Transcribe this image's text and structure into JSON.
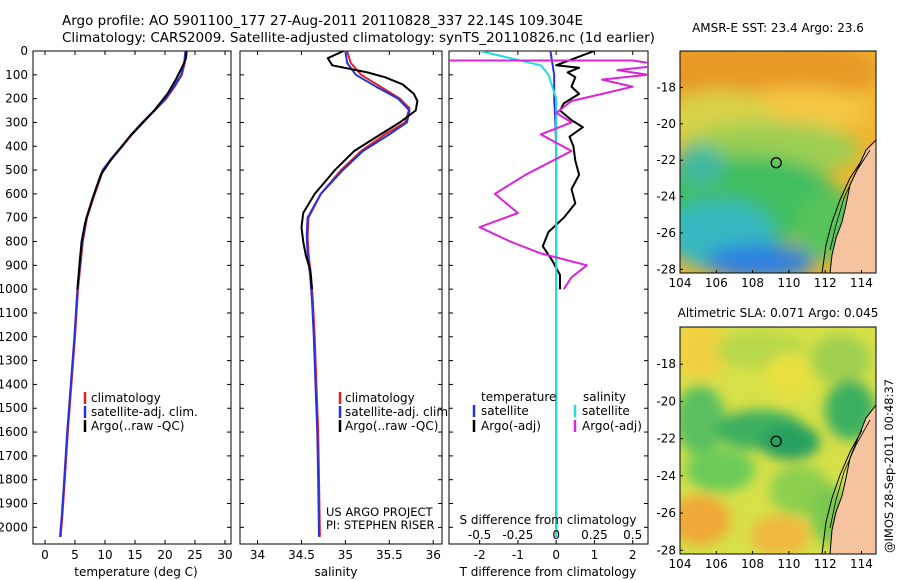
{
  "header": {
    "line1": "Argo profile: AO 5901100_177 27-Aug-2011 20110828_337 22.14S 109.304E",
    "line2": "Climatology: CARS2009. Satellite-adjusted climatology: synTS_20110826.nc (1d earlier)"
  },
  "colors": {
    "climatology": "#e02020",
    "satellite": "#2233dd",
    "argo": "#000000",
    "satellite_salinity": "#22dddd",
    "argo_salinity": "#dd22dd"
  },
  "chart_data": [
    {
      "type": "line",
      "id": "temperature",
      "xlabel": "temperature (deg C)",
      "xlim": [
        -2,
        31
      ],
      "xticks": [
        0,
        5,
        10,
        15,
        20,
        25,
        30
      ],
      "ylim": [
        2070,
        0
      ],
      "yticks": [
        0,
        100,
        200,
        300,
        400,
        500,
        600,
        700,
        800,
        900,
        1000,
        1100,
        1200,
        1300,
        1400,
        1500,
        1600,
        1700,
        1800,
        1900,
        2000
      ],
      "legend": [
        "climatology",
        "satellite-adj. clim.",
        "Argo(..raw -QC)"
      ],
      "series": [
        {
          "name": "climatology",
          "color_key": "climatology",
          "points": [
            [
              23.6,
              0
            ],
            [
              23.3,
              50
            ],
            [
              22.8,
              100
            ],
            [
              21.6,
              150
            ],
            [
              20.2,
              200
            ],
            [
              18.3,
              250
            ],
            [
              16.3,
              300
            ],
            [
              14.5,
              350
            ],
            [
              12.9,
              400
            ],
            [
              11.2,
              450
            ],
            [
              9.7,
              500
            ],
            [
              8.3,
              600
            ],
            [
              7.0,
              700
            ],
            [
              6.3,
              800
            ],
            [
              5.9,
              900
            ],
            [
              5.5,
              1000
            ],
            [
              5.0,
              1200
            ],
            [
              4.4,
              1400
            ],
            [
              3.8,
              1600
            ],
            [
              3.3,
              1800
            ],
            [
              2.9,
              1950
            ],
            [
              2.6,
              2040
            ]
          ]
        },
        {
          "name": "satellite-adj. clim.",
          "color_key": "satellite",
          "points": [
            [
              23.4,
              0
            ],
            [
              23.2,
              50
            ],
            [
              22.7,
              100
            ],
            [
              21.5,
              150
            ],
            [
              20.1,
              200
            ],
            [
              18.2,
              250
            ],
            [
              16.2,
              300
            ],
            [
              14.4,
              350
            ],
            [
              12.8,
              400
            ],
            [
              11.1,
              450
            ],
            [
              9.6,
              500
            ],
            [
              8.2,
              600
            ],
            [
              6.9,
              700
            ],
            [
              6.2,
              800
            ],
            [
              5.8,
              900
            ],
            [
              5.4,
              1000
            ],
            [
              4.9,
              1200
            ],
            [
              4.3,
              1400
            ],
            [
              3.7,
              1600
            ],
            [
              3.2,
              1800
            ],
            [
              2.8,
              1950
            ],
            [
              2.5,
              2040
            ]
          ]
        },
        {
          "name": "Argo(..raw -QC)",
          "color_key": "argo",
          "points": [
            [
              23.6,
              0
            ],
            [
              23.5,
              30
            ],
            [
              23.0,
              60
            ],
            [
              21.8,
              120
            ],
            [
              20.4,
              180
            ],
            [
              18.2,
              250
            ],
            [
              16.0,
              310
            ],
            [
              14.1,
              360
            ],
            [
              12.5,
              410
            ],
            [
              10.9,
              460
            ],
            [
              9.3,
              520
            ],
            [
              7.9,
              620
            ],
            [
              6.7,
              720
            ],
            [
              6.1,
              800
            ],
            [
              5.8,
              880
            ],
            [
              5.6,
              940
            ],
            [
              5.4,
              1000
            ]
          ]
        }
      ]
    },
    {
      "type": "line",
      "id": "salinity",
      "xlabel": "salinity",
      "xlim": [
        33.8,
        36.1
      ],
      "xticks": [
        34,
        34.5,
        35,
        35.5,
        36
      ],
      "xticklabels": [
        "34",
        "34.5",
        "35",
        "35.5",
        "36"
      ],
      "ylim": [
        2070,
        0
      ],
      "legend": [
        "climatology",
        "satellite-adj. clim.",
        "Argo(..raw -QC)"
      ],
      "notes": [
        "US ARGO PROJECT",
        "PI: STEPHEN RISER"
      ],
      "series": [
        {
          "name": "climatology",
          "color_key": "climatology",
          "points": [
            [
              35.02,
              0
            ],
            [
              35.06,
              50
            ],
            [
              35.18,
              100
            ],
            [
              35.4,
              150
            ],
            [
              35.62,
              200
            ],
            [
              35.73,
              240
            ],
            [
              35.68,
              300
            ],
            [
              35.45,
              350
            ],
            [
              35.18,
              420
            ],
            [
              34.95,
              500
            ],
            [
              34.72,
              600
            ],
            [
              34.58,
              700
            ],
            [
              34.57,
              780
            ],
            [
              34.58,
              850
            ],
            [
              34.61,
              950
            ],
            [
              34.63,
              1050
            ],
            [
              34.65,
              1200
            ],
            [
              34.67,
              1400
            ],
            [
              34.69,
              1600
            ],
            [
              34.7,
              1800
            ],
            [
              34.71,
              2040
            ]
          ]
        },
        {
          "name": "satellite-adj. clim.",
          "color_key": "satellite",
          "points": [
            [
              35.0,
              0
            ],
            [
              35.02,
              50
            ],
            [
              35.12,
              100
            ],
            [
              35.35,
              150
            ],
            [
              35.6,
              200
            ],
            [
              35.73,
              250
            ],
            [
              35.7,
              300
            ],
            [
              35.5,
              350
            ],
            [
              35.2,
              420
            ],
            [
              34.97,
              500
            ],
            [
              34.72,
              600
            ],
            [
              34.57,
              700
            ],
            [
              34.56,
              780
            ],
            [
              34.57,
              850
            ],
            [
              34.6,
              950
            ],
            [
              34.62,
              1050
            ],
            [
              34.64,
              1200
            ],
            [
              34.66,
              1400
            ],
            [
              34.68,
              1600
            ],
            [
              34.69,
              1800
            ],
            [
              34.7,
              2040
            ]
          ]
        },
        {
          "name": "Argo(..raw -QC)",
          "color_key": "argo",
          "points": [
            [
              34.98,
              0
            ],
            [
              34.8,
              30
            ],
            [
              34.85,
              60
            ],
            [
              35.25,
              90
            ],
            [
              35.45,
              110
            ],
            [
              35.65,
              140
            ],
            [
              35.78,
              180
            ],
            [
              35.82,
              210
            ],
            [
              35.8,
              250
            ],
            [
              35.62,
              300
            ],
            [
              35.4,
              350
            ],
            [
              35.1,
              420
            ],
            [
              34.88,
              500
            ],
            [
              34.65,
              600
            ],
            [
              34.52,
              680
            ],
            [
              34.5,
              740
            ],
            [
              34.52,
              800
            ],
            [
              34.55,
              860
            ],
            [
              34.6,
              920
            ],
            [
              34.62,
              1000
            ]
          ]
        }
      ]
    },
    {
      "type": "line",
      "id": "difference",
      "xlabel": "T difference from climatology",
      "xlabel_top": "S difference from climatology",
      "xlim": [
        -2.8,
        2.4
      ],
      "xticks": [
        -2,
        -1,
        0,
        1,
        2
      ],
      "xticks_top": [
        -0.5,
        -0.25,
        0,
        0.25,
        0.5
      ],
      "xticklabels_top": [
        "-0.5",
        "-0.25",
        "0",
        "0.25",
        "0.5"
      ],
      "ylim": [
        2070,
        0
      ],
      "legend_titles": [
        "temperature",
        "salinity"
      ],
      "legend": [
        "satellite",
        "Argo(-adj)",
        "satellite",
        "Argo(-adj)"
      ],
      "series": [
        {
          "name": "satellite",
          "group": "temperature",
          "color_key": "satellite",
          "points": [
            [
              -0.15,
              0
            ],
            [
              -0.1,
              50
            ],
            [
              -0.05,
              100
            ],
            [
              -0.05,
              200
            ],
            [
              -0.02,
              300
            ],
            [
              0,
              400
            ],
            [
              0,
              600
            ],
            [
              0,
              800
            ],
            [
              0,
              1000
            ],
            [
              0,
              1200
            ],
            [
              0,
              1500
            ],
            [
              0,
              1800
            ],
            [
              0,
              2040
            ]
          ]
        },
        {
          "name": "Argo(-adj)",
          "group": "temperature",
          "color_key": "argo",
          "points": [
            [
              1.0,
              0
            ],
            [
              0.5,
              30
            ],
            [
              0.0,
              60
            ],
            [
              0.6,
              70
            ],
            [
              0.3,
              90
            ],
            [
              0.5,
              110
            ],
            [
              0.4,
              150
            ],
            [
              0.6,
              180
            ],
            [
              0.2,
              220
            ],
            [
              0.1,
              250
            ],
            [
              0.4,
              290
            ],
            [
              0.7,
              320
            ],
            [
              0.35,
              360
            ],
            [
              0.45,
              400
            ],
            [
              0.5,
              460
            ],
            [
              0.6,
              520
            ],
            [
              0.4,
              580
            ],
            [
              0.5,
              640
            ],
            [
              0.2,
              700
            ],
            [
              -0.2,
              760
            ],
            [
              -0.35,
              820
            ],
            [
              -0.1,
              880
            ],
            [
              0.1,
              940
            ],
            [
              0.1,
              1000
            ]
          ]
        },
        {
          "name": "satellite",
          "group": "salinity",
          "color_key": "satellite_salinity",
          "points": [
            [
              -0.5,
              0
            ],
            [
              -0.3,
              30
            ],
            [
              -0.1,
              60
            ],
            [
              -0.05,
              100
            ],
            [
              0,
              200
            ],
            [
              0,
              300
            ],
            [
              0,
              400
            ],
            [
              0,
              600
            ],
            [
              0,
              800
            ],
            [
              0,
              1000
            ],
            [
              0,
              1200
            ],
            [
              0,
              1500
            ],
            [
              0,
              1800
            ],
            [
              0,
              2040
            ]
          ]
        },
        {
          "name": "Argo(-adj)",
          "group": "salinity",
          "color_key": "argo_salinity",
          "points": [
            [
              -0.9,
              40
            ],
            [
              0.5,
              40
            ],
            [
              0.7,
              60
            ],
            [
              0.4,
              80
            ],
            [
              0.6,
              100
            ],
            [
              0.3,
              120
            ],
            [
              0.5,
              150
            ],
            [
              0.3,
              180
            ],
            [
              0.1,
              210
            ],
            [
              0.0,
              260
            ],
            [
              0.1,
              300
            ],
            [
              -0.1,
              350
            ],
            [
              0.1,
              420
            ],
            [
              -0.2,
              520
            ],
            [
              -0.4,
              600
            ],
            [
              -0.25,
              680
            ],
            [
              -0.5,
              740
            ],
            [
              -0.3,
              800
            ],
            [
              -0.1,
              850
            ],
            [
              0.2,
              900
            ],
            [
              0.1,
              950
            ],
            [
              0.05,
              1000
            ]
          ]
        }
      ]
    },
    {
      "type": "heatmap",
      "id": "sst_map",
      "title": "AMSR-E SST: 23.4 Argo: 23.6",
      "xticks": [
        "104",
        "106",
        "108",
        "110",
        "112",
        "114"
      ],
      "yticks": [
        "-18",
        "-20",
        "-22",
        "-24",
        "-26",
        "-28"
      ],
      "xlim": [
        104,
        114.8
      ],
      "ylim": [
        -28.2,
        -16
      ],
      "marker": {
        "lon": 109.3,
        "lat": -22.14
      }
    },
    {
      "type": "heatmap",
      "id": "sla_map",
      "title": "Altimetric SLA: 0.071 Argo: 0.045",
      "xticks": [
        "104",
        "106",
        "108",
        "110",
        "112",
        "114"
      ],
      "yticks": [
        "-18",
        "-20",
        "-22",
        "-24",
        "-26",
        "-28"
      ],
      "xlim": [
        104,
        114.8
      ],
      "ylim": [
        -28.2,
        -16
      ],
      "marker": {
        "lon": 109.3,
        "lat": -22.14
      }
    }
  ],
  "footer_stamp": "@IMOS 28-Sep-2011 00:48:37"
}
